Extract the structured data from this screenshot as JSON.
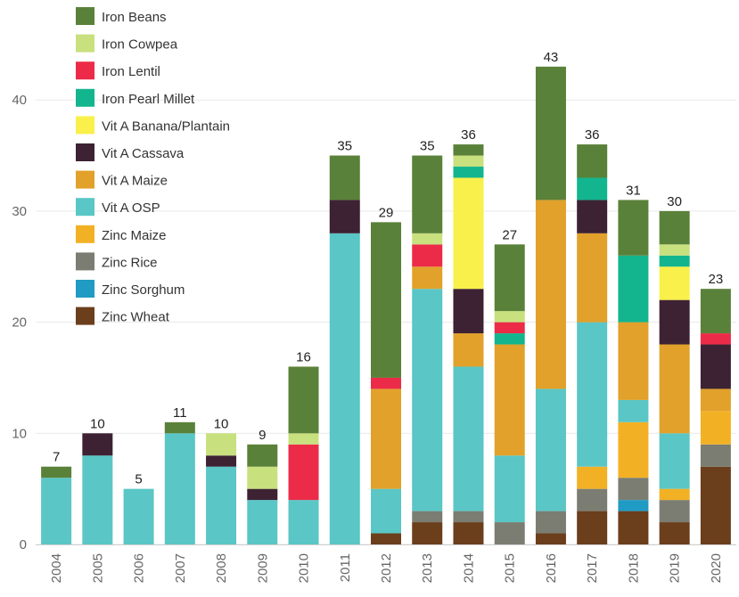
{
  "chart_data": {
    "type": "bar",
    "stacked": true,
    "title": "",
    "xlabel": "",
    "ylabel": "",
    "ylim": [
      0,
      47
    ],
    "yticks": [
      0,
      10,
      20,
      30,
      40
    ],
    "grid": true,
    "legend_position": "top-left",
    "categories": [
      "2004",
      "2005",
      "2006",
      "2007",
      "2008",
      "2009",
      "2010",
      "2011",
      "2012",
      "2013",
      "2014",
      "2015",
      "2016",
      "2017",
      "2018",
      "2019",
      "2020"
    ],
    "totals": [
      7,
      10,
      5,
      11,
      10,
      9,
      16,
      35,
      29,
      35,
      36,
      27,
      43,
      36,
      31,
      30,
      23
    ],
    "series": [
      {
        "name": "Zinc Wheat",
        "color": "#6b3e1c",
        "values": [
          0,
          0,
          0,
          0,
          0,
          0,
          0,
          0,
          1,
          2,
          2,
          0,
          1,
          3,
          3,
          2,
          7
        ]
      },
      {
        "name": "Zinc Sorghum",
        "color": "#1f9bc4",
        "values": [
          0,
          0,
          0,
          0,
          0,
          0,
          0,
          0,
          0,
          0,
          0,
          0,
          0,
          0,
          1,
          0,
          0
        ]
      },
      {
        "name": "Zinc Rice",
        "color": "#7b7d72",
        "values": [
          0,
          0,
          0,
          0,
          0,
          0,
          0,
          0,
          0,
          1,
          1,
          2,
          2,
          2,
          2,
          2,
          2
        ]
      },
      {
        "name": "Zinc Maize",
        "color": "#f2b124",
        "values": [
          0,
          0,
          0,
          0,
          0,
          0,
          0,
          0,
          0,
          0,
          0,
          0,
          0,
          2,
          5,
          1,
          3
        ]
      },
      {
        "name": "Vit A OSP",
        "color": "#5ac6c6",
        "values": [
          6,
          8,
          5,
          10,
          7,
          4,
          4,
          28,
          4,
          20,
          13,
          6,
          11,
          13,
          2,
          5,
          0
        ]
      },
      {
        "name": "Vit A Maize",
        "color": "#e1a12a",
        "values": [
          0,
          0,
          0,
          0,
          0,
          0,
          0,
          0,
          9,
          2,
          3,
          10,
          17,
          8,
          7,
          8,
          2
        ]
      },
      {
        "name": "Vit A Cassava",
        "color": "#3d2233",
        "values": [
          0,
          2,
          0,
          0,
          1,
          1,
          0,
          3,
          0,
          0,
          4,
          0,
          0,
          3,
          0,
          4,
          4
        ]
      },
      {
        "name": "Vit A Banana/Plantain",
        "color": "#f9f04b",
        "values": [
          0,
          0,
          0,
          0,
          0,
          0,
          0,
          0,
          0,
          0,
          10,
          0,
          0,
          0,
          0,
          3,
          0
        ]
      },
      {
        "name": "Iron Pearl Millet",
        "color": "#13b58e",
        "values": [
          0,
          0,
          0,
          0,
          0,
          0,
          0,
          0,
          0,
          0,
          1,
          1,
          0,
          2,
          6,
          1,
          0
        ]
      },
      {
        "name": "Iron Lentil",
        "color": "#ec2b48",
        "values": [
          0,
          0,
          0,
          0,
          0,
          0,
          5,
          0,
          1,
          2,
          0,
          1,
          0,
          0,
          0,
          0,
          1
        ]
      },
      {
        "name": "Iron Cowpea",
        "color": "#c8e07e",
        "values": [
          0,
          0,
          0,
          0,
          2,
          2,
          1,
          0,
          0,
          1,
          1,
          1,
          0,
          0,
          0,
          1,
          0
        ]
      },
      {
        "name": "Iron Beans",
        "color": "#5a8139",
        "values": [
          1,
          0,
          0,
          1,
          0,
          2,
          6,
          4,
          14,
          7,
          1,
          6,
          12,
          3,
          5,
          3,
          4
        ]
      }
    ],
    "legend_order": [
      "Iron Beans",
      "Iron Cowpea",
      "Iron Lentil",
      "Iron Pearl Millet",
      "Vit A Banana/Plantain",
      "Vit A Cassava",
      "Vit A Maize",
      "Vit A OSP",
      "Zinc Maize",
      "Zinc Rice",
      "Zinc Sorghum",
      "Zinc Wheat"
    ]
  }
}
